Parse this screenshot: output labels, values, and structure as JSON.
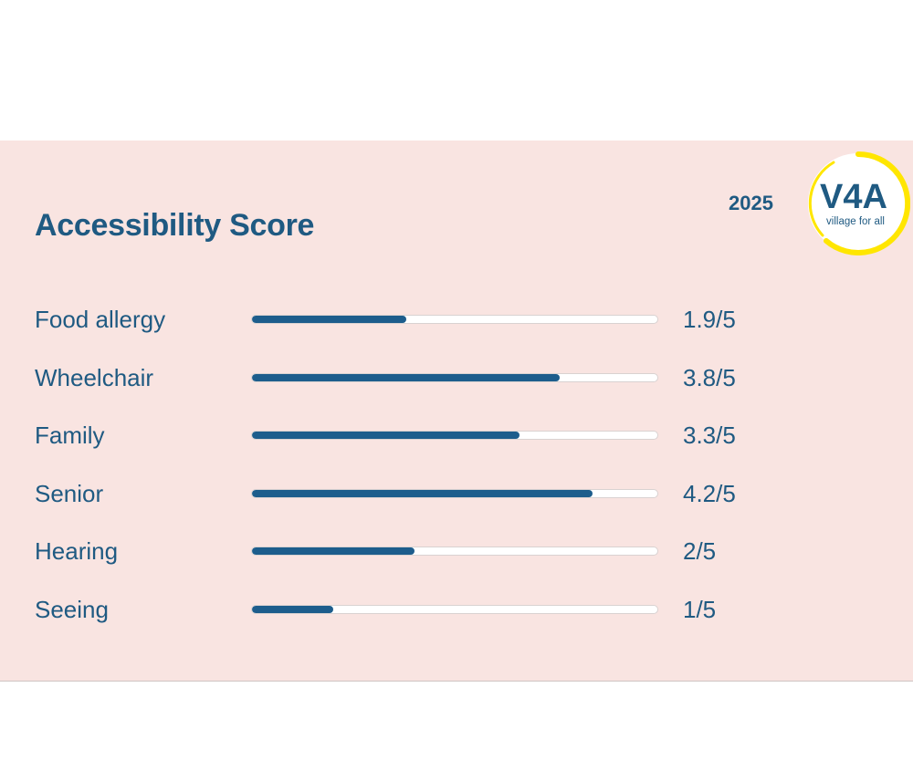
{
  "header": {
    "title": "Accessibility Score",
    "year": "2025"
  },
  "logo": {
    "main_text": "V4A",
    "tagline": "village for all",
    "ring_color": "#ffe600",
    "text_color": "#1f5a82"
  },
  "colors": {
    "card_background": "#f9e4e1",
    "bar_fill": "#1d5d8c",
    "bar_track": "#ffffff",
    "text": "#1f5a82"
  },
  "chart_data": {
    "type": "bar",
    "orientation": "horizontal",
    "title": "Accessibility Score",
    "categories": [
      "Food allergy",
      "Wheelchair",
      "Family",
      "Senior",
      "Hearing",
      "Seeing"
    ],
    "values": [
      1.9,
      3.8,
      3.3,
      4.2,
      2,
      1
    ],
    "max": 5,
    "value_labels": [
      "1.9/5",
      "3.8/5",
      "3.3/5",
      "4.2/5",
      "2/5",
      "1/5"
    ]
  }
}
